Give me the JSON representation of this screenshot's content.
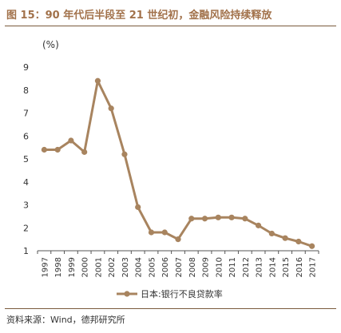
{
  "header": {
    "title": "图 15：90 年代后半段至 21 世纪初，金融风险持续释放"
  },
  "footer": {
    "source": "资料来源：Wind，德邦研究所"
  },
  "colors": {
    "series": "#a8845f",
    "title": "#a2724b",
    "rule": "#7a5a3c",
    "axis": "#555555"
  },
  "chart_data": {
    "type": "line",
    "title": "",
    "xlabel": "",
    "ylabel": "(%)",
    "ylim": [
      1,
      9
    ],
    "yticks": [
      "1",
      "2",
      "3",
      "4",
      "5",
      "6",
      "7",
      "8",
      "9"
    ],
    "grid": false,
    "legend": "bottom-center",
    "x": [
      "1997",
      "1998",
      "1999",
      "2000",
      "2001",
      "2002",
      "2003",
      "2004",
      "2005",
      "2006",
      "2007",
      "2008",
      "2009",
      "2010",
      "2011",
      "2012",
      "2013",
      "2014",
      "2015",
      "2016",
      "2017"
    ],
    "series": [
      {
        "name": "日本:银行不良贷款率",
        "values": [
          5.4,
          5.4,
          5.8,
          5.3,
          8.4,
          7.2,
          5.2,
          2.9,
          1.8,
          1.8,
          1.5,
          2.4,
          2.4,
          2.45,
          2.45,
          2.4,
          2.1,
          1.75,
          1.55,
          1.4,
          1.2
        ]
      }
    ]
  }
}
